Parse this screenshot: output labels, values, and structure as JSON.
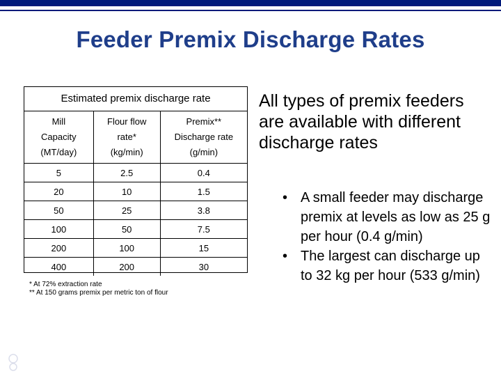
{
  "title": "Feeder Premix Discharge Rates",
  "table": {
    "caption": "Estimated premix discharge rate",
    "headers": [
      [
        "Mill",
        "Capacity",
        "(MT/day)"
      ],
      [
        "Flour flow",
        "rate*",
        "(kg/min)"
      ],
      [
        "Premix**",
        "Discharge rate",
        "(g/min)"
      ]
    ],
    "rows": [
      [
        "5",
        "2.5",
        "0.4"
      ],
      [
        "20",
        "10",
        "1.5"
      ],
      [
        "50",
        "25",
        "3.8"
      ],
      [
        "100",
        "50",
        "7.5"
      ],
      [
        "200",
        "100",
        "15"
      ],
      [
        "400",
        "200",
        "30"
      ]
    ]
  },
  "footnotes": [
    "* At 72% extraction rate",
    "** At 150 grams premix per metric ton of flour"
  ],
  "main_text": "All types of premix feeders are available with different discharge rates",
  "bullets": [
    "A small feeder may discharge premix at levels as low as 25 g per hour (0.4 g/min)",
    "The largest can discharge up to 32 kg per hour (533 g/min)"
  ],
  "bullet_symbol": "•",
  "colors": {
    "title": "#1f3e8a",
    "top_bar": "#001a7a"
  }
}
